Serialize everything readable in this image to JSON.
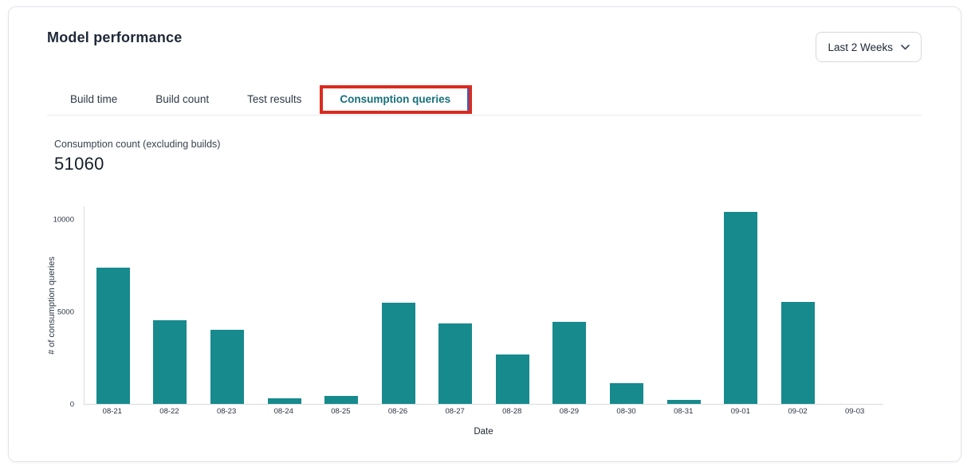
{
  "header": {
    "title": "Model performance"
  },
  "filter": {
    "value": "Last 2 Weeks"
  },
  "tabs": [
    {
      "label": "Build time",
      "active": false
    },
    {
      "label": "Build count",
      "active": false
    },
    {
      "label": "Test results",
      "active": false
    },
    {
      "label": "Consumption queries",
      "active": true
    }
  ],
  "metric": {
    "label": "Consumption count (excluding builds)",
    "value": "51060"
  },
  "annotation": {
    "highlight_box_color": "#da2b1f",
    "cursor_line_color": "#2b62d9"
  },
  "colors": {
    "bar": "#178a8d",
    "active_tab_text": "#17707a",
    "axis_line": "#d9dbe0",
    "card_border": "#e3e4e9"
  },
  "chart_data": {
    "type": "bar",
    "title": "",
    "categories": [
      "08-21",
      "08-22",
      "08-23",
      "08-24",
      "08-25",
      "08-26",
      "08-27",
      "08-28",
      "08-29",
      "08-30",
      "08-31",
      "09-01",
      "09-02",
      "09-03"
    ],
    "values": [
      7420,
      4570,
      4020,
      300,
      420,
      5490,
      4360,
      2700,
      4450,
      1110,
      210,
      10450,
      5560,
      0
    ],
    "xlabel": "Date",
    "ylabel": "# of consumption queries",
    "yticks": [
      0,
      5000,
      10000
    ],
    "ylim": [
      0,
      10750
    ],
    "grid": false,
    "legend": "none",
    "bar_color": "#178a8d",
    "total": 51060
  }
}
